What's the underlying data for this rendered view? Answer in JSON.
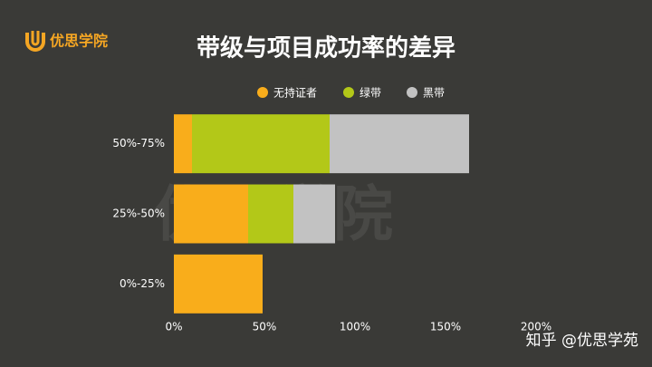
{
  "brand": "优思学院",
  "watermark": "优思学院",
  "footer": "知乎 @优思学苑",
  "chart_data": {
    "type": "stacked-barh",
    "title": "带级与项目成功率的差异",
    "categories": [
      "50%-75%",
      "25%-50%",
      "0%-25%"
    ],
    "series": [
      {
        "name": "无持证者",
        "color": "#f9ad1b",
        "values": [
          10,
          41,
          49
        ]
      },
      {
        "name": "绿带",
        "color": "#b3c818",
        "values": [
          76,
          25,
          0
        ]
      },
      {
        "name": "黑带",
        "color": "#c2c2c2",
        "values": [
          77,
          23,
          0
        ]
      }
    ],
    "xlim": [
      0,
      200
    ],
    "xticks": [
      {
        "value": 0,
        "label": "0%"
      },
      {
        "value": 50,
        "label": "50%"
      },
      {
        "value": 100,
        "label": "100%"
      },
      {
        "value": 150,
        "label": "150%"
      },
      {
        "value": 200,
        "label": "200%"
      }
    ],
    "legend": "top",
    "grid": false
  }
}
